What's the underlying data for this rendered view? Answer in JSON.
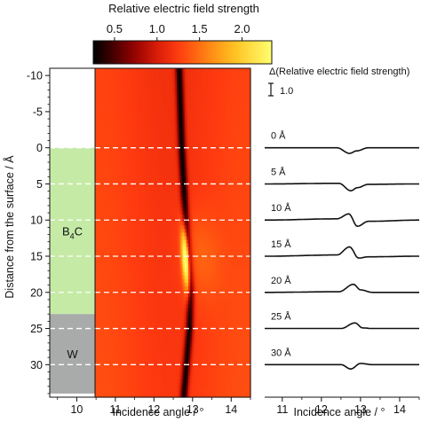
{
  "colorbar": {
    "title": "Relative electric field strength",
    "ticks": [
      0.5,
      1.0,
      1.5,
      2.0
    ],
    "tick_labels": [
      "0.5",
      "1.0",
      "1.5",
      "2.0"
    ],
    "range": [
      0.25,
      2.35
    ],
    "colors": [
      "#000000",
      "#3a0000",
      "#8a0000",
      "#d81c08",
      "#ff3b10",
      "#ff7a12",
      "#ffc020",
      "#ffff70"
    ]
  },
  "layers": [
    {
      "label_main": "B",
      "label_sub": "4",
      "label_tail": "C",
      "from": 0,
      "to": 23,
      "color": "#c5eaa6"
    },
    {
      "label_main": "W",
      "label_sub": "",
      "label_tail": "",
      "from": 23,
      "to": 34,
      "color": "#a9abab"
    }
  ],
  "left_xaxis": {
    "label": "Incidence angle / °",
    "range": [
      9.3,
      14.5
    ],
    "layer_column": [
      9.3,
      10.55
    ],
    "map": [
      10.55,
      14.5
    ],
    "ticks": [
      10,
      11,
      12,
      13,
      14
    ],
    "tick_labels": [
      "10",
      "11",
      "12",
      "13",
      "14"
    ]
  },
  "yaxis": {
    "label": "Distance from the surface / Å",
    "range": [
      -11,
      34.5
    ],
    "ticks": [
      -10,
      -5,
      0,
      5,
      10,
      15,
      20,
      25,
      30
    ],
    "tick_labels": [
      "-10",
      "-5",
      "0",
      "5",
      "10",
      "15",
      "20",
      "25",
      "30"
    ]
  },
  "guides": [
    0,
    5,
    10,
    15,
    20,
    25,
    30
  ],
  "right_xaxis": {
    "label": "Incidence angle / °",
    "range": [
      10.55,
      14.5
    ],
    "ticks": [
      11,
      12,
      13,
      14
    ],
    "tick_labels": [
      "11",
      "12",
      "13",
      "14"
    ]
  },
  "right_panel": {
    "title": "Δ(Relative electric field strength)",
    "scale_label": "1.0",
    "scale_value": 1.0
  },
  "chart_data": {
    "type": "heatmap",
    "title": "",
    "colorbar_label": "Relative electric field strength",
    "xlabel": "Incidence angle / °",
    "ylabel": "Distance from the surface / Å",
    "xlim": [
      10.55,
      14.5
    ],
    "ylim": [
      -11,
      34.5
    ],
    "grid": false,
    "profiles_by_depth": [
      {
        "depth": -10,
        "peak_angle": 12.64,
        "background": 1.25,
        "dip_min": 0.3
      },
      {
        "depth": 0,
        "peak_angle": 12.7,
        "background": 1.25,
        "dip_min": 0.3
      },
      {
        "depth": 10,
        "peak_angle": 12.8,
        "bright_max": 2.0
      },
      {
        "depth": 15,
        "peak_angle": 12.86,
        "bright_max": 2.35
      },
      {
        "depth": 20,
        "peak_angle": 12.92,
        "bright_max": 2.0
      },
      {
        "depth": 25,
        "peak_angle": 12.9,
        "dip_min": 0.3
      },
      {
        "depth": 34,
        "peak_angle": 12.76,
        "dip_min": 0.3
      }
    ],
    "difference_curves": {
      "ylabel": "Δ(Relative electric field strength)",
      "series": [
        {
          "name": "0 Å",
          "depth": 0,
          "x": [
            10.6,
            12.4,
            12.72,
            12.9,
            13.2,
            14.5
          ],
          "y": [
            0.0,
            0.0,
            -0.45,
            -0.25,
            0.0,
            0.0
          ]
        },
        {
          "name": "5 Å",
          "depth": 5,
          "x": [
            10.6,
            12.45,
            12.75,
            12.92,
            13.2,
            14.5
          ],
          "y": [
            0.0,
            0.05,
            -0.55,
            -0.3,
            -0.03,
            0.0
          ]
        },
        {
          "name": "10 Å",
          "depth": 10,
          "x": [
            10.6,
            12.4,
            12.7,
            12.92,
            13.2,
            14.5
          ],
          "y": [
            0.0,
            0.1,
            0.5,
            -0.5,
            -0.1,
            0.0
          ]
        },
        {
          "name": "15 Å",
          "depth": 15,
          "x": [
            10.6,
            12.4,
            12.72,
            12.95,
            13.2,
            14.5
          ],
          "y": [
            0.0,
            0.1,
            0.75,
            -0.15,
            -0.05,
            0.0
          ]
        },
        {
          "name": "20 Å",
          "depth": 20,
          "x": [
            10.6,
            12.45,
            12.82,
            13.0,
            13.3,
            14.5
          ],
          "y": [
            0.0,
            0.05,
            0.65,
            0.2,
            0.0,
            0.0
          ]
        },
        {
          "name": "25 Å",
          "depth": 25,
          "x": [
            10.6,
            12.5,
            12.86,
            13.05,
            13.3,
            14.5
          ],
          "y": [
            0.0,
            0.0,
            0.45,
            0.05,
            0.0,
            0.0
          ]
        },
        {
          "name": "30 Å",
          "depth": 30,
          "x": [
            10.6,
            12.5,
            12.75,
            13.0,
            13.3,
            14.5
          ],
          "y": [
            0.0,
            0.0,
            -0.35,
            0.1,
            0.0,
            0.0
          ]
        }
      ]
    }
  }
}
